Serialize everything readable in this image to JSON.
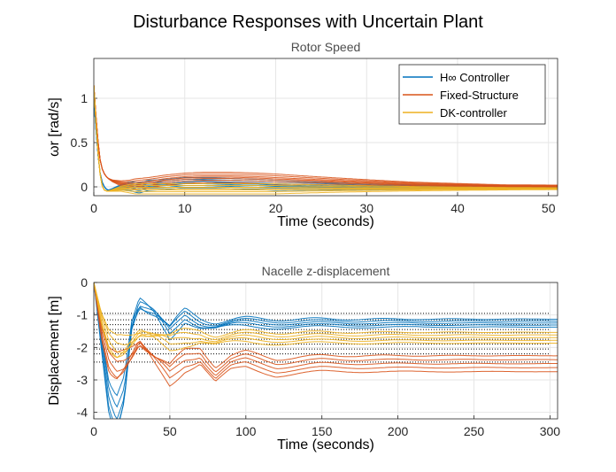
{
  "figure": {
    "suptitle": "Disturbance Responses with Uncertain Plant"
  },
  "colors": {
    "hinf": "#0072bd",
    "fixed": "#d95319",
    "dk": "#edb120",
    "grid": "#e6e6e6",
    "axis": "#262626"
  },
  "chart_data": [
    {
      "type": "line",
      "title": "Rotor Speed",
      "xlabel": "Time (seconds)",
      "ylabel": "ωr [rad/s]",
      "xlim": [
        0,
        51
      ],
      "ylim": [
        -0.1,
        1.45
      ],
      "xticks": [
        0,
        10,
        20,
        30,
        40,
        50
      ],
      "yticks": [
        0,
        0.5,
        1
      ],
      "grid": true,
      "legend": {
        "placement": "top-right",
        "entries": [
          "H∞ Controller",
          "Fixed-Structure",
          "DK-controller"
        ]
      },
      "series": [
        {
          "name": "H∞ Controller",
          "color": "#0072bd",
          "x": [
            0,
            0.3,
            0.6,
            1,
            1.5,
            2,
            3,
            4,
            5,
            6,
            8,
            10,
            12,
            15,
            18,
            20,
            25,
            30,
            35,
            40,
            45,
            51
          ],
          "y": [
            1.0,
            0.55,
            0.2,
            0.02,
            -0.04,
            -0.03,
            0.0,
            0.01,
            -0.01,
            0.02,
            0.03,
            0.05,
            0.05,
            0.04,
            0.03,
            0.02,
            0.01,
            0.0,
            0.0,
            0.0,
            0.0,
            0.0
          ]
        },
        {
          "name": "Fixed-Structure",
          "color": "#d95319",
          "x": [
            0,
            0.3,
            0.6,
            1,
            1.5,
            2,
            3,
            4,
            5,
            6,
            8,
            10,
            12,
            15,
            18,
            20,
            25,
            30,
            35,
            40,
            45,
            51
          ],
          "y": [
            1.15,
            0.7,
            0.35,
            0.17,
            0.1,
            0.07,
            0.04,
            0.03,
            0.04,
            0.05,
            0.08,
            0.1,
            0.11,
            0.11,
            0.1,
            0.09,
            0.07,
            0.05,
            0.03,
            0.02,
            0.01,
            0.01
          ]
        },
        {
          "name": "DK-controller",
          "color": "#edb120",
          "x": [
            0,
            0.3,
            0.6,
            1,
            1.5,
            2,
            3,
            4,
            5,
            6,
            8,
            10,
            12,
            15,
            18,
            20,
            25,
            30,
            35,
            40,
            45,
            51
          ],
          "y": [
            1.15,
            0.6,
            0.2,
            -0.03,
            -0.05,
            -0.04,
            -0.02,
            -0.02,
            -0.02,
            -0.02,
            -0.02,
            -0.02,
            -0.02,
            -0.02,
            -0.02,
            -0.02,
            -0.02,
            -0.02,
            -0.02,
            -0.02,
            -0.02,
            -0.02
          ]
        }
      ]
    },
    {
      "type": "line",
      "title": "Nacelle z-displacement",
      "xlabel": "Time (seconds)",
      "ylabel": "Displacement [m]",
      "xlim": [
        0,
        305
      ],
      "ylim": [
        -4.2,
        0
      ],
      "xticks": [
        0,
        50,
        100,
        150,
        200,
        250,
        300
      ],
      "yticks": [
        0,
        -1,
        -2,
        -3,
        -4
      ],
      "grid": true,
      "series": [
        {
          "name": "H∞ Controller",
          "color": "#0072bd",
          "x": [
            0,
            5,
            10,
            15,
            20,
            25,
            30,
            40,
            50,
            60,
            70,
            80,
            100,
            150,
            200,
            250,
            305
          ],
          "y": [
            0,
            -1.8,
            -3.6,
            -4.1,
            -3.3,
            -1.2,
            -0.6,
            -1.0,
            -1.6,
            -1.0,
            -1.2,
            -1.3,
            -1.25,
            -1.25,
            -1.25,
            -1.25,
            -1.25
          ]
        },
        {
          "name": "Fixed-Structure",
          "color": "#d95319",
          "x": [
            0,
            5,
            10,
            15,
            20,
            30,
            40,
            50,
            60,
            70,
            80,
            90,
            100,
            120,
            150,
            200,
            250,
            305
          ],
          "y": [
            0,
            -1.5,
            -2.4,
            -2.6,
            -2.4,
            -1.8,
            -2.4,
            -2.9,
            -2.4,
            -2.2,
            -2.8,
            -2.5,
            -2.4,
            -2.6,
            -2.5,
            -2.5,
            -2.5,
            -2.5
          ]
        },
        {
          "name": "DK-controller",
          "color": "#edb120",
          "x": [
            0,
            5,
            10,
            15,
            20,
            30,
            40,
            50,
            60,
            70,
            80,
            100,
            150,
            200,
            250,
            305
          ],
          "y": [
            0,
            -1.1,
            -1.8,
            -2.0,
            -1.9,
            -1.5,
            -1.7,
            -1.9,
            -1.7,
            -1.6,
            -1.75,
            -1.7,
            -1.7,
            -1.7,
            -1.7,
            -1.7
          ]
        }
      ],
      "steady_state_levels": [
        -0.95,
        -1.15,
        -1.3,
        -1.45,
        -1.55,
        -1.75,
        -1.9,
        -2.05,
        -2.2,
        -2.45
      ]
    }
  ]
}
